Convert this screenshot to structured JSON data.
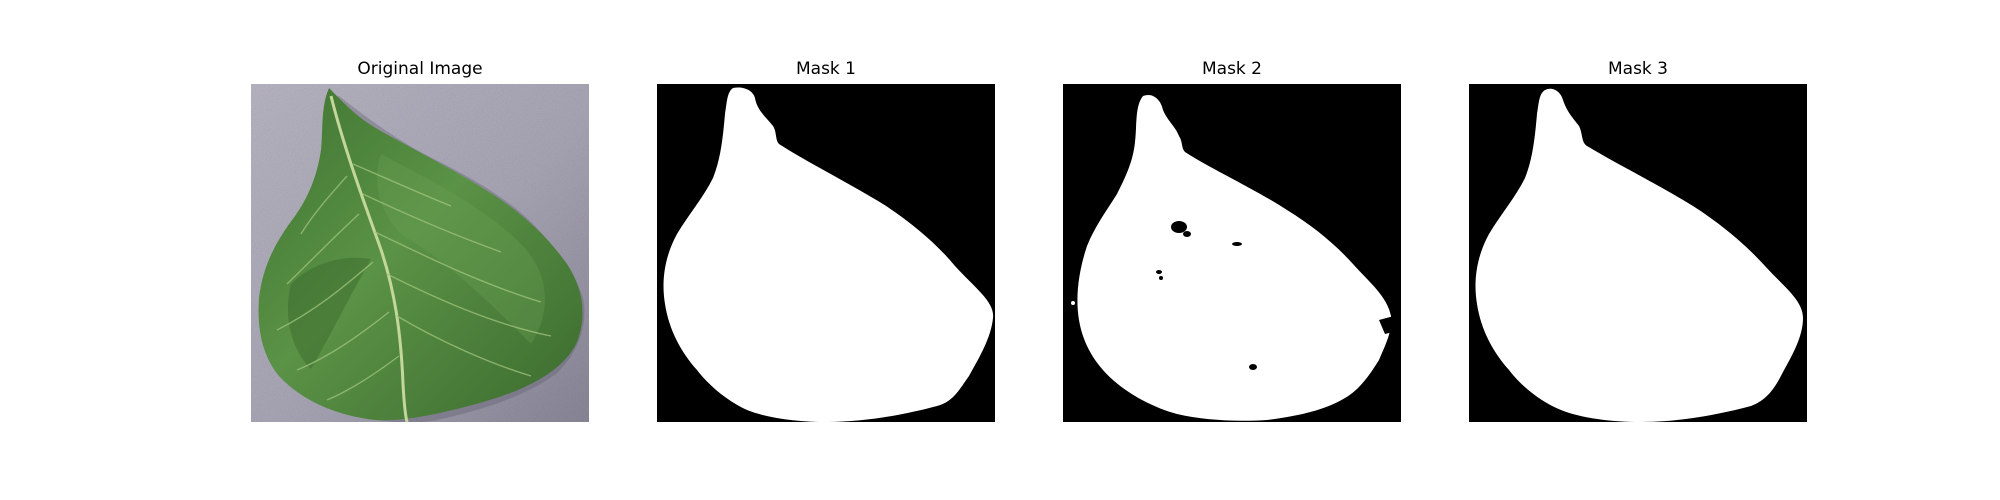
{
  "figure": {
    "panels": [
      {
        "title": "Original Image",
        "kind": "photo",
        "subject": "green leaf on grey background"
      },
      {
        "title": "Mask 1",
        "kind": "mask",
        "mask_color": "#ffffff",
        "background_color": "#000000"
      },
      {
        "title": "Mask 2",
        "kind": "mask",
        "mask_color": "#ffffff",
        "background_color": "#000000"
      },
      {
        "title": "Mask 3",
        "kind": "mask",
        "mask_color": "#ffffff",
        "background_color": "#000000"
      }
    ]
  },
  "colors": {
    "leaf_dark": "#2f5a25",
    "leaf_mid": "#4f8a3d",
    "leaf_light": "#7fae62",
    "vein": "#c5d89a",
    "photo_bg_light": "#b5b2bf",
    "photo_bg_dark": "#7f7c8c"
  }
}
